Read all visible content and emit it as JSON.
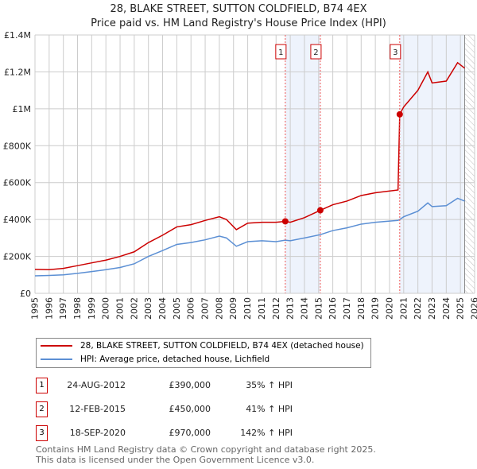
{
  "chart_data": {
    "type": "line",
    "title": "28, BLAKE STREET, SUTTON COLDFIELD, B74 4EX",
    "subtitle": "Price paid vs. HM Land Registry's House Price Index (HPI)",
    "xlabel": "",
    "ylabel": "",
    "xlim": [
      1995,
      2026
    ],
    "ylim": [
      0,
      1400000
    ],
    "x_ticks": [
      "1995",
      "1996",
      "1997",
      "1998",
      "1999",
      "2000",
      "2001",
      "2002",
      "2003",
      "2004",
      "2005",
      "2006",
      "2007",
      "2008",
      "2009",
      "2010",
      "2011",
      "2012",
      "2013",
      "2014",
      "2015",
      "2016",
      "2017",
      "2018",
      "2019",
      "2020",
      "2021",
      "2022",
      "2023",
      "2024",
      "2025",
      "2026"
    ],
    "y_ticks": [
      {
        "v": 0,
        "label": "£0"
      },
      {
        "v": 200000,
        "label": "£200K"
      },
      {
        "v": 400000,
        "label": "£400K"
      },
      {
        "v": 600000,
        "label": "£600K"
      },
      {
        "v": 800000,
        "label": "£800K"
      },
      {
        "v": 1000000,
        "label": "£1M"
      },
      {
        "v": 1200000,
        "label": "£1.2M"
      },
      {
        "v": 1400000,
        "label": "£1.4M"
      }
    ],
    "grid": true,
    "series": [
      {
        "name": "28, BLAKE STREET, SUTTON COLDFIELD, B74 4EX (detached house)",
        "color": "#cc0000",
        "x": [
          1995,
          1996,
          1997,
          1998,
          1999,
          2000,
          2001,
          2002,
          2003,
          2004,
          2005,
          2006,
          2007,
          2008,
          2008.5,
          2009.2,
          2010,
          2011,
          2012,
          2012.65,
          2013,
          2014,
          2015.12,
          2016,
          2017,
          2018,
          2019,
          2020.6,
          2020.72,
          2021,
          2022,
          2022.7,
          2023,
          2024,
          2024.8,
          2025.3
        ],
        "y": [
          130000,
          128000,
          135000,
          150000,
          165000,
          180000,
          200000,
          225000,
          275000,
          315000,
          360000,
          372000,
          395000,
          415000,
          400000,
          345000,
          380000,
          385000,
          385000,
          390000,
          385000,
          410000,
          450000,
          480000,
          500000,
          530000,
          545000,
          560000,
          970000,
          1010000,
          1100000,
          1200000,
          1140000,
          1150000,
          1250000,
          1220000
        ]
      },
      {
        "name": "HPI: Average price, detached house, Lichfield",
        "color": "#5b8fd4",
        "x": [
          1995,
          1996,
          1997,
          1998,
          1999,
          2000,
          2001,
          2002,
          2003,
          2004,
          2005,
          2006,
          2007,
          2008,
          2008.5,
          2009.2,
          2010,
          2011,
          2012,
          2012.65,
          2013,
          2014,
          2015.12,
          2016,
          2017,
          2018,
          2019,
          2020.6,
          2020.72,
          2021,
          2022,
          2022.7,
          2023,
          2024,
          2024.8,
          2025.3
        ],
        "y": [
          95000,
          97000,
          100000,
          108000,
          118000,
          128000,
          140000,
          160000,
          200000,
          232000,
          265000,
          275000,
          290000,
          310000,
          300000,
          255000,
          280000,
          285000,
          280000,
          288000,
          285000,
          300000,
          318000,
          340000,
          355000,
          375000,
          385000,
          395000,
          400000,
          415000,
          445000,
          490000,
          470000,
          475000,
          515000,
          500000
        ]
      }
    ],
    "sales": [
      {
        "num": "1",
        "x": 2012.65,
        "price": 390000,
        "date": "24-AUG-2012",
        "price_label": "£390,000",
        "hpi": "35% ↑ HPI"
      },
      {
        "num": "2",
        "x": 2015.12,
        "price": 450000,
        "date": "12-FEB-2015",
        "price_label": "£450,000",
        "hpi": "41% ↑ HPI"
      },
      {
        "num": "3",
        "x": 2020.72,
        "price": 970000,
        "date": "18-SEP-2020",
        "price_label": "£970,000",
        "hpi": "142% ↑ HPI"
      }
    ],
    "future_from": 2025.3
  },
  "footer": {
    "line1": "Contains HM Land Registry data © Crown copyright and database right 2025.",
    "line2": "This data is licensed under the Open Government Licence v3.0."
  }
}
